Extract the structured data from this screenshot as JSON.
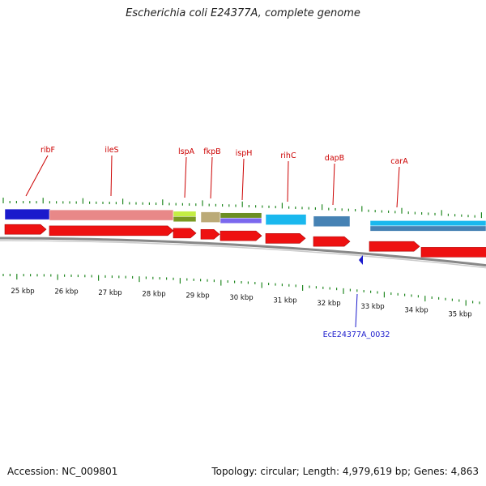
{
  "title": "Escherichia coli E24377A, complete genome",
  "footer": {
    "accession": "Accession: NC_009801",
    "stats": "Topology: circular; Length: 4,979,619 bp; Genes: 4,863"
  },
  "colors": {
    "gene_arrow": "#ee1111",
    "label": "#cc0000",
    "tick": "#228822",
    "locus_marker": "#1a1acc",
    "backbone": "#888888"
  },
  "gene_labels": [
    "ribF",
    "ileS",
    "lspA",
    "fkpB",
    "ispH",
    "rihC",
    "dapB",
    "carA"
  ],
  "cog_boxes": [
    {
      "gene": "ribF",
      "colors": [
        "#1a1acc"
      ]
    },
    {
      "gene": "ileS",
      "colors": [
        "#e88888"
      ]
    },
    {
      "gene": "lspA",
      "colors": [
        "#c4ee44",
        "#7a9a22"
      ]
    },
    {
      "gene": "fkpB",
      "colors": [
        "#bbaa77"
      ]
    },
    {
      "gene": "ispH",
      "colors": [
        "#6b8e23",
        "#7b68ee"
      ]
    },
    {
      "gene": "rihC",
      "colors": [
        "#1ab8ee"
      ]
    },
    {
      "gene": "dapB",
      "colors": [
        "#4682b4"
      ]
    },
    {
      "gene": "carA",
      "colors": [
        "#1ab8ee",
        "#4682b4"
      ]
    }
  ],
  "scale_labels": [
    "25 kbp",
    "26 kbp",
    "27 kbp",
    "28 kbp",
    "29 kbp",
    "30 kbp",
    "31 kbp",
    "32 kbp",
    "33 kbp",
    "34 kbp",
    "35 kbp"
  ],
  "locus": {
    "label": "EcE24377A_0032",
    "strand": "reverse"
  }
}
